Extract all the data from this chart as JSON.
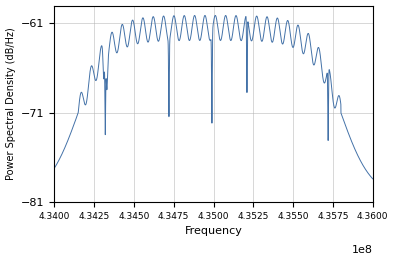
{
  "title": "",
  "xlabel": "Frequency",
  "ylabel": "Power Spectral Density (dB/Hz)",
  "xlim": [
    434000000.0,
    436000000.0
  ],
  "ylim": [
    -81,
    -59
  ],
  "yticks": [
    -81,
    -71,
    -61
  ],
  "xtick_values": [
    434000000.0,
    434250000.0,
    434500000.0,
    434750000.0,
    435000000.0,
    435250000.0,
    435500000.0,
    435750000.0,
    436000000.0
  ],
  "line_color": "#4472a8",
  "line_width": 0.7,
  "background_color": "#ffffff",
  "grid_color": "#b0b0b0",
  "grid_alpha": 0.7,
  "passband_level": -61.5,
  "noise_floor": -80.5,
  "f_start": 434150000.0,
  "f_end": 435800000.0,
  "edge_steepness": 800000,
  "ripple_amplitude": 1.4,
  "ripple_period": 65000.0,
  "notch_positions": [
    434320000.0,
    434720000.0,
    434990000.0,
    435210000.0,
    435720000.0
  ],
  "notch_depths": [
    8.0,
    8.5,
    10.0,
    8.5,
    8.0
  ],
  "notch_widths": [
    8000.0,
    8000.0,
    8000.0,
    8000.0,
    8000.0
  ]
}
